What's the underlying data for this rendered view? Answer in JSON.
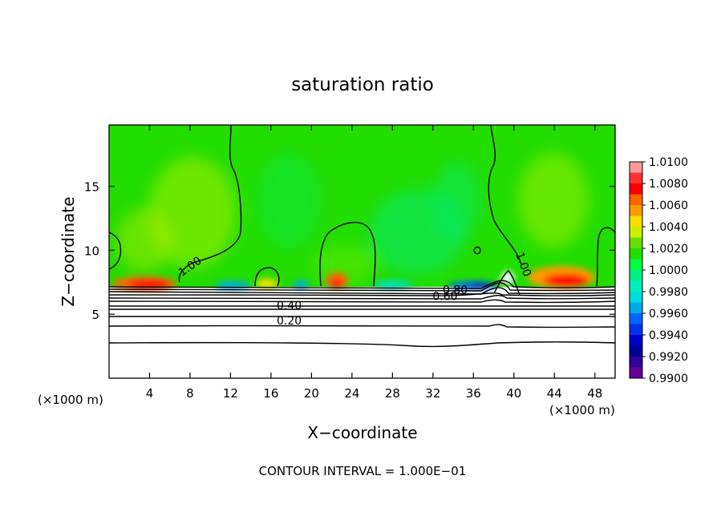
{
  "chart_data": {
    "type": "heatmap",
    "title": "saturation ratio",
    "xlabel": "X−coordinate",
    "ylabel": "Z−coordinate",
    "x_unit_left": "(×1000 m)",
    "x_unit_right": "(×1000 m)",
    "footer": "CONTOUR INTERVAL = 1.000E−01",
    "xlim": [
      0,
      50
    ],
    "ylim": [
      0,
      19.8
    ],
    "xticks": [
      4,
      8,
      12,
      16,
      20,
      24,
      28,
      32,
      36,
      40,
      44,
      48
    ],
    "yticks": [
      5,
      10,
      15
    ],
    "colorbar": {
      "labels": [
        "1.0100",
        "1.0080",
        "1.0060",
        "1.0040",
        "1.0020",
        "1.0000",
        "0.9980",
        "0.9960",
        "0.9940",
        "0.9920",
        "0.9900"
      ],
      "colors": [
        "#ff9999",
        "#ff3333",
        "#ff0000",
        "#ff6600",
        "#ff9900",
        "#ffdd00",
        "#ccee00",
        "#66dd00",
        "#22dd00",
        "#00ff44",
        "#00ee88",
        "#00eebb",
        "#00dddd",
        "#00aaee",
        "#0066ff",
        "#0033ee",
        "#0000cc",
        "#000099",
        "#330099",
        "#660099"
      ]
    },
    "contour_labels": [
      {
        "text": "1.00",
        "x": 8.2,
        "y": 8.5
      },
      {
        "text": "1.00",
        "x": 40.6,
        "y": 8.8
      },
      {
        "text": "0.80",
        "x": 34.2,
        "y": 6.6
      },
      {
        "text": "0.60",
        "x": 33.2,
        "y": 6.1
      },
      {
        "text": "0.40",
        "x": 17.8,
        "y": 5.4
      },
      {
        "text": "0.20",
        "x": 17.8,
        "y": 4.2
      }
    ]
  }
}
